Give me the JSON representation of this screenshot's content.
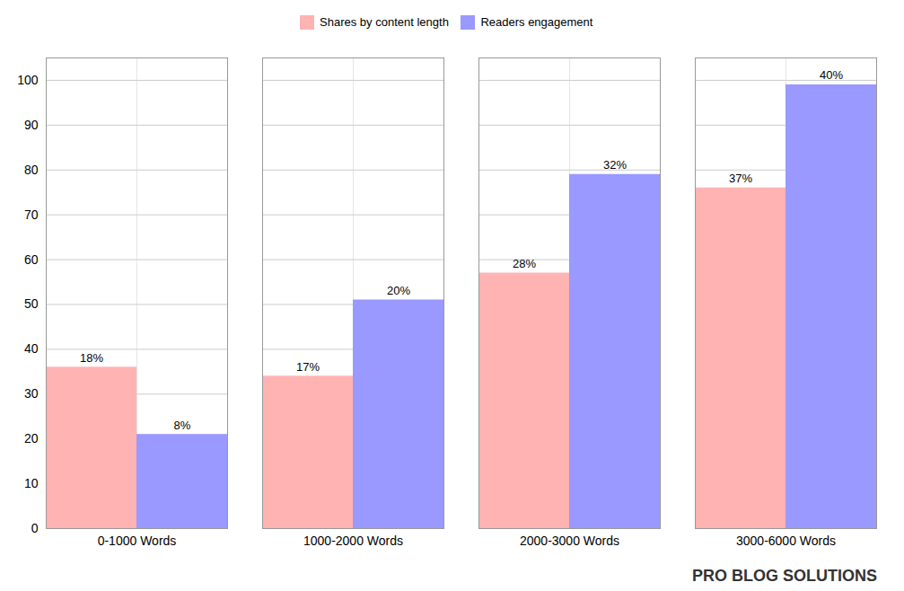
{
  "chart_data": {
    "type": "bar",
    "categories": [
      "0-1000 Words",
      "1000-2000 Words",
      "2000-3000 Words",
      "3000-6000 Words"
    ],
    "series": [
      {
        "name": "Shares by content length",
        "color": "#FFB3B3",
        "values": [
          36,
          34,
          57,
          76
        ],
        "value_labels": [
          "18%",
          "17%",
          "28%",
          "37%"
        ]
      },
      {
        "name": "Readers engagement",
        "color": "#9999FF",
        "values": [
          21,
          51,
          79,
          99
        ],
        "value_labels": [
          "8%",
          "20%",
          "32%",
          "40%"
        ]
      }
    ],
    "ylim": [
      0,
      105
    ],
    "yticks": [
      0,
      10,
      20,
      30,
      40,
      50,
      60,
      70,
      80,
      90,
      100
    ],
    "grid": true,
    "legend": "top",
    "data_labels": true,
    "annotations": [
      "PRO BLOG SOLUTIONS"
    ]
  }
}
